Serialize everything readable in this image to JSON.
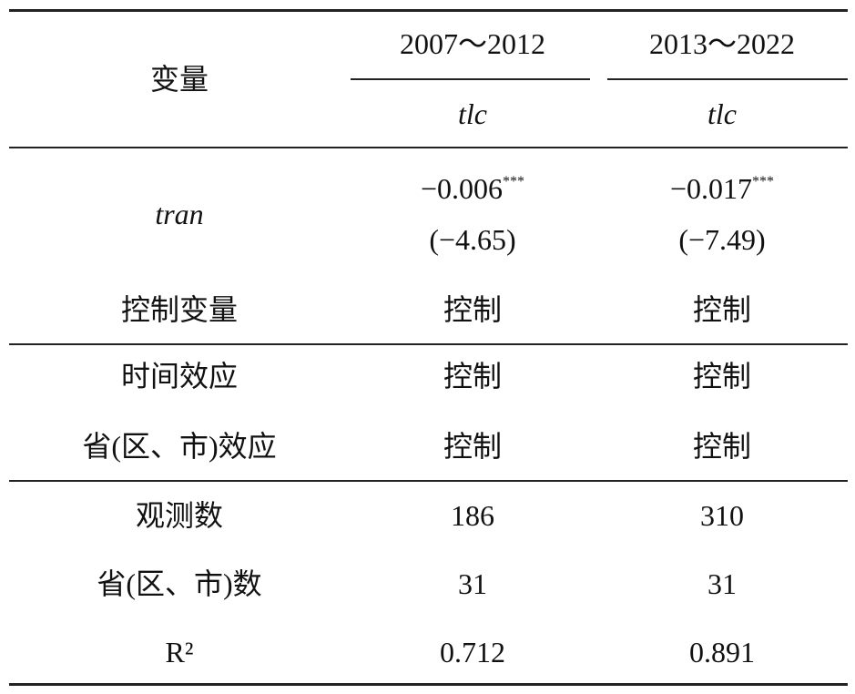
{
  "header": {
    "variable": "变量",
    "periods": [
      "2007～2012",
      "2013～2022"
    ],
    "dependent": [
      "tlc",
      "tlc"
    ]
  },
  "rows": [
    {
      "label": "tran",
      "cells": [
        {
          "coef": "−0.006",
          "stars": "***",
          "t": "(−4.65)"
        },
        {
          "coef": "−0.017",
          "stars": "***",
          "t": "(−7.49)"
        }
      ]
    },
    {
      "label": "控制变量",
      "cells": [
        "控制",
        "控制"
      ]
    },
    {
      "label": "时间效应",
      "cells": [
        "控制",
        "控制"
      ]
    },
    {
      "label": "省(区、市)效应",
      "cells": [
        "控制",
        "控制"
      ]
    },
    {
      "label": "观测数",
      "cells": [
        "186",
        "310"
      ]
    },
    {
      "label": "省(区、市)数",
      "cells": [
        "31",
        "31"
      ]
    },
    {
      "label": "R²",
      "cells": [
        "0.712",
        "0.891"
      ]
    }
  ]
}
